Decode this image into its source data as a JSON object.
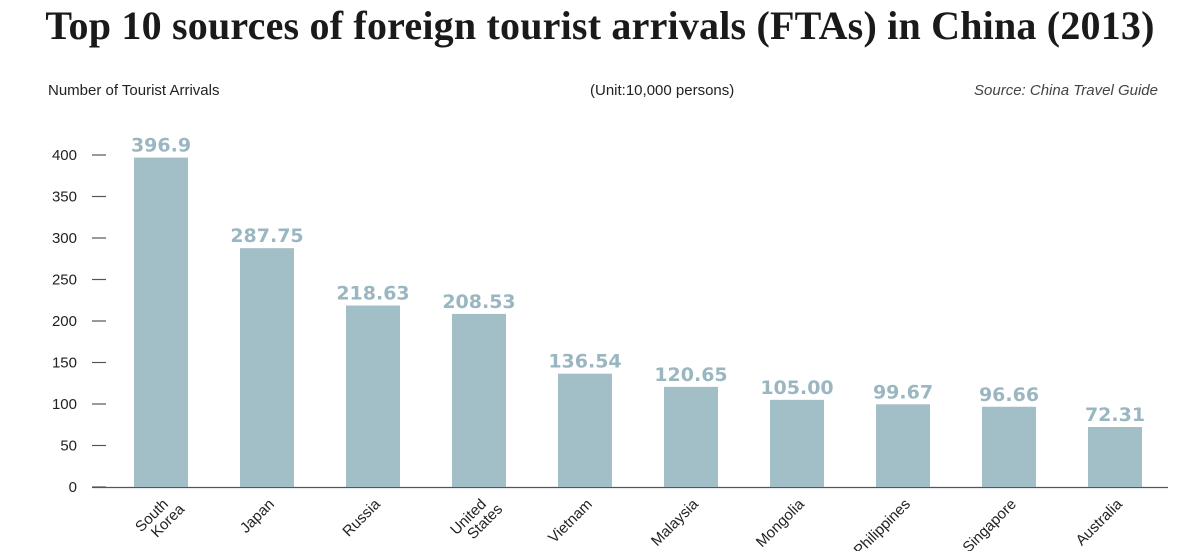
{
  "chart_data": {
    "type": "bar",
    "title": "Top 10 sources of foreign tourist arrivals (FTAs) in China (2013)",
    "ylabel": "Number of Tourist Arrivals",
    "unit": "(Unit:10,000 persons)",
    "source": "Source: China Travel Guide",
    "categories": [
      [
        "South",
        "Korea"
      ],
      [
        "Japan"
      ],
      [
        "Russia"
      ],
      [
        "United",
        "States"
      ],
      [
        "Vietnam"
      ],
      [
        "Malaysia"
      ],
      [
        "Mongolia"
      ],
      [
        "Philippines"
      ],
      [
        "Singapore"
      ],
      [
        "Australia"
      ]
    ],
    "values": [
      396.9,
      287.75,
      218.63,
      208.53,
      136.54,
      120.65,
      105.0,
      99.67,
      96.66,
      72.31
    ],
    "value_labels": [
      "396.9",
      "287.75",
      "218.63",
      "208.53",
      "136.54",
      "120.65",
      "105.00",
      "99.67",
      "96.66",
      "72.31"
    ],
    "yticks": [
      0,
      50,
      100,
      150,
      200,
      250,
      300,
      350,
      400
    ],
    "ylim": [
      0,
      400
    ],
    "grid": false,
    "legend": "none",
    "colors": {
      "bar": "#a2bec7",
      "label": "#9ab7c1",
      "axis": "#555555"
    }
  }
}
